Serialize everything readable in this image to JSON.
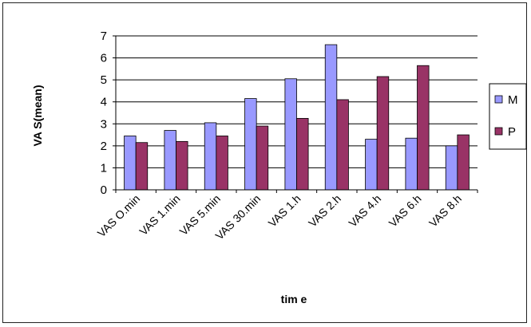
{
  "chart_data": {
    "type": "bar",
    "categories": [
      "VAS O.min",
      "VAS 1.min",
      "VAS 5.min",
      "VAS 30.min",
      "VAS 1.h",
      "VAS 2.h",
      "VAS 4.h",
      "VAS 6.h",
      "VAS 8.h"
    ],
    "series": [
      {
        "name": "M",
        "color": "#9999ff",
        "values": [
          2.45,
          2.7,
          3.05,
          4.15,
          5.05,
          6.6,
          2.3,
          2.35,
          2.0
        ]
      },
      {
        "name": "P",
        "color": "#993366",
        "values": [
          2.15,
          2.2,
          2.45,
          2.9,
          3.25,
          4.1,
          5.15,
          5.65,
          2.5
        ]
      }
    ],
    "yticks": [
      "0",
      "1",
      "2",
      "3",
      "4",
      "5",
      "6",
      "7"
    ],
    "xlabel": "tim e",
    "ylabel": "VA S(mean)",
    "ylim": [
      0,
      7
    ],
    "grid": true,
    "legend_position": "right"
  }
}
